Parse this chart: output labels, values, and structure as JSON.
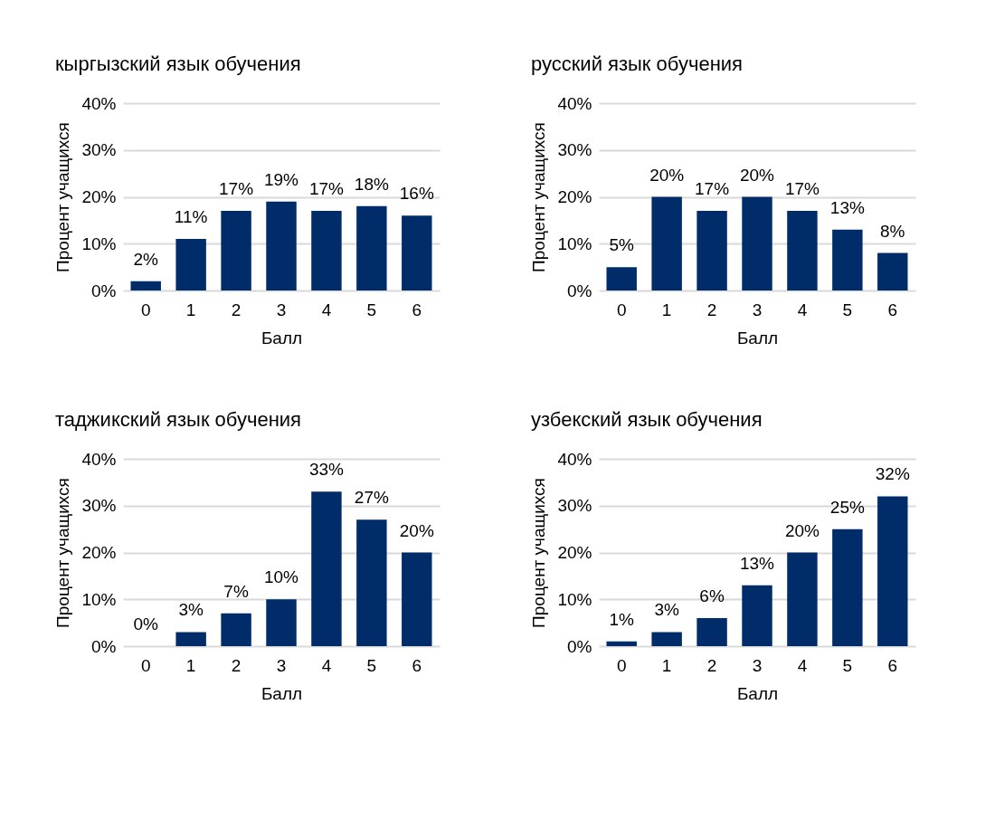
{
  "chart_data": [
    {
      "type": "bar",
      "title": "кыргызский язык обучения",
      "xlabel": "Балл",
      "ylabel": "Процент учащихся",
      "categories": [
        "0",
        "1",
        "2",
        "3",
        "4",
        "5",
        "6"
      ],
      "values": [
        2,
        11,
        17,
        19,
        17,
        18,
        16
      ],
      "value_labels": [
        "2%",
        "11%",
        "17%",
        "19%",
        "17%",
        "18%",
        "16%"
      ],
      "color": "#002d6a",
      "ylim": [
        0,
        40
      ],
      "yticks": [
        {
          "value": 0,
          "label": "0%"
        },
        {
          "value": 10,
          "label": "10%"
        },
        {
          "value": 20,
          "label": "20%"
        },
        {
          "value": 30,
          "label": "30%"
        },
        {
          "value": 40,
          "label": "40%"
        }
      ],
      "grid": "y"
    },
    {
      "type": "bar",
      "title": "русский язык обучения",
      "xlabel": "Балл",
      "ylabel": "Процент учащихся",
      "categories": [
        "0",
        "1",
        "2",
        "3",
        "4",
        "5",
        "6"
      ],
      "values": [
        5,
        20,
        17,
        20,
        17,
        13,
        8
      ],
      "value_labels": [
        "5%",
        "20%",
        "17%",
        "20%",
        "17%",
        "13%",
        "8%"
      ],
      "color": "#002d6a",
      "ylim": [
        0,
        40
      ],
      "yticks": [
        {
          "value": 0,
          "label": "0%"
        },
        {
          "value": 10,
          "label": "10%"
        },
        {
          "value": 20,
          "label": "20%"
        },
        {
          "value": 30,
          "label": "30%"
        },
        {
          "value": 40,
          "label": "40%"
        }
      ],
      "grid": "y"
    },
    {
      "type": "bar",
      "title": "таджикский язык обучения",
      "xlabel": "Балл",
      "ylabel": "Процент учащихся",
      "categories": [
        "0",
        "1",
        "2",
        "3",
        "4",
        "5",
        "6"
      ],
      "values": [
        0,
        3,
        7,
        10,
        33,
        27,
        20
      ],
      "value_labels": [
        "0%",
        "3%",
        "7%",
        "10%",
        "33%",
        "27%",
        "20%"
      ],
      "color": "#002d6a",
      "ylim": [
        0,
        40
      ],
      "yticks": [
        {
          "value": 0,
          "label": "0%"
        },
        {
          "value": 10,
          "label": "10%"
        },
        {
          "value": 20,
          "label": "20%"
        },
        {
          "value": 30,
          "label": "30%"
        },
        {
          "value": 40,
          "label": "40%"
        }
      ],
      "grid": "y"
    },
    {
      "type": "bar",
      "title": "узбекский язык обучения",
      "xlabel": "Балл",
      "ylabel": "Процент учащихся",
      "categories": [
        "0",
        "1",
        "2",
        "3",
        "4",
        "5",
        "6"
      ],
      "values": [
        1,
        3,
        6,
        13,
        20,
        25,
        32
      ],
      "value_labels": [
        "1%",
        "3%",
        "6%",
        "13%",
        "20%",
        "25%",
        "32%"
      ],
      "color": "#002d6a",
      "ylim": [
        0,
        40
      ],
      "yticks": [
        {
          "value": 0,
          "label": "0%"
        },
        {
          "value": 10,
          "label": "10%"
        },
        {
          "value": 20,
          "label": "20%"
        },
        {
          "value": 30,
          "label": "30%"
        },
        {
          "value": 40,
          "label": "40%"
        }
      ],
      "grid": "y"
    }
  ]
}
